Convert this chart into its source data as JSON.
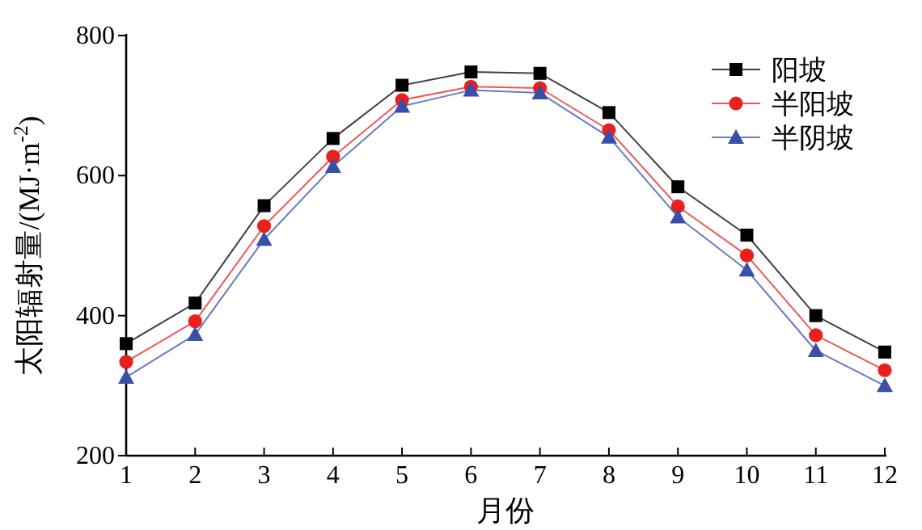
{
  "chart_data": {
    "type": "line",
    "xlabel": "月份",
    "ylabel": "太阳辐射量/(MJ·m$^{-2}$)",
    "x": [
      1,
      2,
      3,
      4,
      5,
      6,
      7,
      8,
      9,
      10,
      11,
      12
    ],
    "xlim": [
      1,
      12
    ],
    "xticks": [
      1,
      2,
      3,
      4,
      5,
      6,
      7,
      8,
      9,
      10,
      11,
      12
    ],
    "ylim": [
      200,
      800
    ],
    "yticks": [
      200,
      400,
      600,
      800
    ],
    "legend": "top right",
    "grid": false,
    "series": [
      {
        "name": "阳坡",
        "color": "#000000",
        "marker": "square",
        "values": [
          360,
          418,
          557,
          653,
          729,
          748,
          746,
          690,
          584,
          515,
          400,
          348
        ]
      },
      {
        "name": "半阳坡",
        "color": "#e8201e",
        "marker": "circle",
        "values": [
          334,
          392,
          528,
          627,
          708,
          727,
          725,
          665,
          556,
          486,
          372,
          322
        ]
      },
      {
        "name": "半阴坡",
        "color": "#3a4fa8",
        "marker": "triangle",
        "values": [
          312,
          373,
          509,
          613,
          699,
          722,
          718,
          655,
          541,
          465,
          350,
          300
        ]
      }
    ]
  }
}
